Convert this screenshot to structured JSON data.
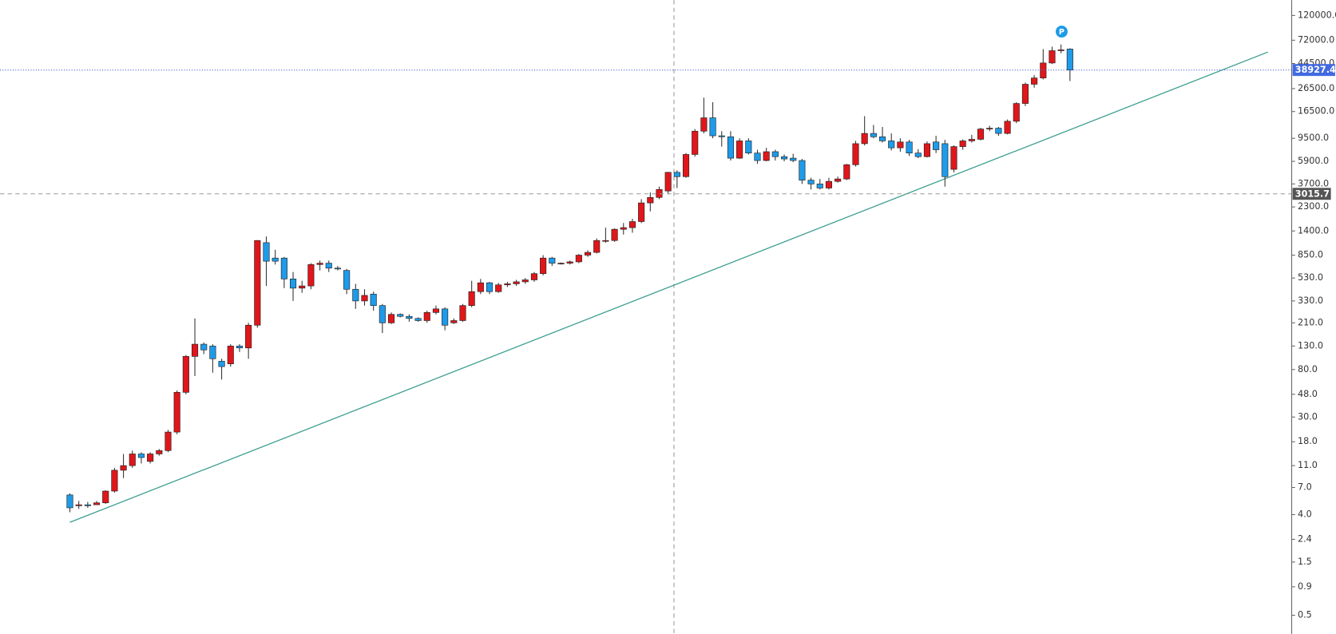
{
  "chart_data": {
    "type": "candlestick",
    "log_scale": true,
    "up_color": "#e0161b",
    "down_color": "#1e9be9",
    "ylim": [
      0.34,
      165000
    ],
    "yticks": [
      {
        "value": 120000,
        "label": "120000.0"
      },
      {
        "value": 72000,
        "label": "72000.0"
      },
      {
        "value": 44500,
        "label": "44500.0"
      },
      {
        "value": 26500,
        "label": "26500.0"
      },
      {
        "value": 16500,
        "label": "16500.0"
      },
      {
        "value": 9500,
        "label": "9500.0"
      },
      {
        "value": 5900,
        "label": "5900.0"
      },
      {
        "value": 3700,
        "label": "3700.0"
      },
      {
        "value": 2300,
        "label": "2300.0"
      },
      {
        "value": 1400,
        "label": "1400.0"
      },
      {
        "value": 850,
        "label": "850.0"
      },
      {
        "value": 530,
        "label": "530.0"
      },
      {
        "value": 330,
        "label": "330.0"
      },
      {
        "value": 210,
        "label": "210.0"
      },
      {
        "value": 130,
        "label": "130.0"
      },
      {
        "value": 80,
        "label": "80.0"
      },
      {
        "value": 48,
        "label": "48.0"
      },
      {
        "value": 30,
        "label": "30.0"
      },
      {
        "value": 18,
        "label": "18.0"
      },
      {
        "value": 11,
        "label": "11.0"
      },
      {
        "value": 7,
        "label": "7.0"
      },
      {
        "value": 4,
        "label": "4.0"
      },
      2.4,
      1.5,
      0.9,
      0.5
    ],
    "crosshair_price": 3015.7,
    "marker": "P",
    "open": [
      6.0,
      4.8,
      4.9,
      4.9,
      5.1,
      6.5,
      10,
      11,
      14,
      12,
      14,
      15,
      22,
      50,
      105,
      135,
      130,
      95,
      90,
      130,
      125,
      200,
      1100,
      800,
      800,
      520,
      430,
      450,
      700,
      720,
      650,
      620,
      420,
      330,
      380,
      300,
      210,
      250,
      240,
      230,
      220,
      260,
      280,
      210,
      220,
      300,
      400,
      480,
      400,
      460,
      470,
      490,
      510,
      580,
      800,
      720,
      720,
      740,
      850,
      900,
      1150,
      1150,
      1450,
      1500,
      1700,
      2500,
      2800,
      3200,
      4700,
      4300,
      6800,
      11000,
      14500,
      10000,
      9800,
      6300,
      9000,
      7000,
      6000,
      7200,
      6500,
      6300,
      6000,
      4000,
      3700,
      3400,
      3900,
      4100,
      5500,
      8500,
      10500,
      9800,
      9000,
      7800,
      8800,
      7000,
      6500,
      8800,
      8500,
      5000,
      8000,
      9000,
      9300,
      11500,
      11700,
      10500,
      13500,
      19500,
      29000,
      33000,
      45000,
      58000,
      60000
    ],
    "high": [
      6.2,
      5.3,
      5.2,
      5.3,
      6.6,
      10.5,
      14,
      15,
      14.5,
      14.5,
      15.5,
      23,
      52,
      108,
      230,
      140,
      135,
      100,
      135,
      135,
      210,
      1160,
      1250,
      950,
      820,
      600,
      500,
      720,
      760,
      760,
      680,
      640,
      470,
      420,
      400,
      310,
      260,
      255,
      250,
      235,
      270,
      300,
      290,
      230,
      310,
      500,
      520,
      490,
      480,
      490,
      510,
      530,
      600,
      850,
      820,
      730,
      760,
      870,
      940,
      1200,
      1500,
      1480,
      1650,
      1800,
      2700,
      3100,
      3500,
      4750,
      4900,
      7000,
      11500,
      22000,
      20000,
      11000,
      11000,
      9500,
      9500,
      7500,
      7800,
      7500,
      6800,
      6900,
      6200,
      4200,
      4100,
      4200,
      4300,
      5600,
      9000,
      15000,
      12500,
      12000,
      10500,
      9500,
      9200,
      7600,
      8900,
      10000,
      9200,
      8200,
      9300,
      10200,
      11800,
      12300,
      12000,
      14000,
      20000,
      30000,
      35000,
      60000,
      63000,
      66000,
      61000
    ],
    "low": [
      4.2,
      4.5,
      4.6,
      4.9,
      5.0,
      6.3,
      8.5,
      10.5,
      11.5,
      11.5,
      13.5,
      14.5,
      21,
      48,
      70,
      110,
      75,
      65,
      85,
      115,
      100,
      190,
      450,
      700,
      430,
      330,
      390,
      420,
      620,
      600,
      620,
      380,
      280,
      300,
      270,
      170,
      205,
      235,
      215,
      215,
      210,
      250,
      180,
      205,
      215,
      290,
      380,
      380,
      390,
      440,
      450,
      470,
      490,
      560,
      680,
      700,
      700,
      720,
      820,
      880,
      1100,
      1120,
      1300,
      1350,
      1650,
      2100,
      2700,
      3000,
      3400,
      4200,
      6500,
      10500,
      9500,
      8000,
      6000,
      6200,
      6800,
      5600,
      5900,
      6000,
      5900,
      5800,
      3700,
      3300,
      3300,
      3300,
      3800,
      4000,
      5300,
      8200,
      9500,
      8700,
      7400,
      7200,
      6600,
      6300,
      6400,
      7000,
      3500,
      4700,
      7500,
      8700,
      9100,
      11000,
      10000,
      10300,
      13000,
      18500,
      27000,
      32000,
      44000,
      55000,
      31000
    ],
    "close": [
      4.6,
      4.9,
      4.8,
      5.1,
      6.5,
      10,
      11,
      14,
      13,
      14,
      15,
      22,
      50,
      105,
      135,
      120,
      100,
      85,
      130,
      125,
      200,
      1150,
      750,
      750,
      520,
      430,
      450,
      700,
      720,
      650,
      640,
      420,
      330,
      370,
      300,
      210,
      250,
      240,
      230,
      220,
      260,
      280,
      200,
      220,
      300,
      400,
      480,
      400,
      460,
      470,
      490,
      510,
      580,
      800,
      720,
      720,
      740,
      850,
      900,
      1150,
      1150,
      1450,
      1500,
      1700,
      2500,
      2800,
      3300,
      4700,
      4300,
      6800,
      11000,
      14500,
      10000,
      9800,
      6300,
      9000,
      7000,
      6000,
      7200,
      6500,
      6200,
      6000,
      4000,
      3700,
      3400,
      3900,
      4100,
      5500,
      8500,
      10500,
      9800,
      9000,
      7800,
      8800,
      7000,
      6500,
      8500,
      7500,
      4300,
      8000,
      9000,
      9300,
      11500,
      11700,
      10500,
      13500,
      19500,
      29000,
      33000,
      45000,
      58000,
      59000,
      38927.4
    ]
  }
}
